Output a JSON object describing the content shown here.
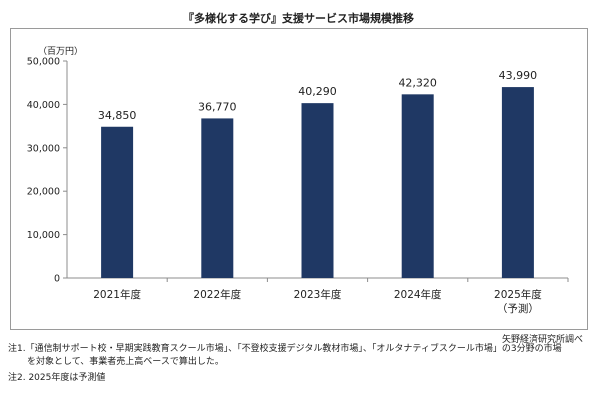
{
  "title": "『多様化する学び』支援サービス市場規模推移",
  "unit_label": "（百万円）",
  "source": "矢野経済研究所調べ",
  "notes": {
    "note1_line1": "注1.「通信制サポート校・早期実践教育スクール市場」、「不登校支援デジタル教材市場」、「オルタナティブスクール市場」の3分野の市場",
    "note1_line2": "を対象として、事業者売上高ベースで算出した。",
    "note2": "注2. 2025年度は予測値"
  },
  "colors": {
    "bar": "#1f3864",
    "axis": "#8c8c8c",
    "frame": "#9a9a9a"
  },
  "chart_data": {
    "type": "bar",
    "title": "『多様化する学び』支援サービス市場規模推移",
    "ylabel": "（百万円）",
    "categories": [
      "2021年度",
      "2022年度",
      "2023年度",
      "2024年度",
      "2025年度"
    ],
    "category_sublabels": [
      "",
      "",
      "",
      "",
      "（予測）"
    ],
    "values": [
      34850,
      36770,
      40290,
      42320,
      43990
    ],
    "value_labels": [
      "34,850",
      "36,770",
      "40,290",
      "42,320",
      "43,990"
    ],
    "ylim": [
      0,
      50000
    ],
    "yticks": [
      0,
      10000,
      20000,
      30000,
      40000,
      50000
    ],
    "ytick_labels": [
      "0",
      "10,000",
      "20,000",
      "30,000",
      "40,000",
      "50,000"
    ],
    "grid": false,
    "legend": "none"
  }
}
